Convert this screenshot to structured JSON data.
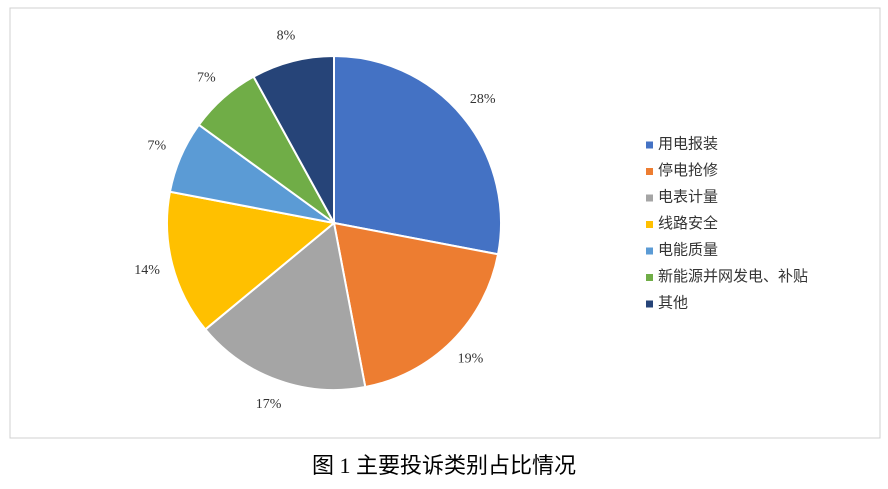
{
  "chart_data": {
    "type": "pie",
    "categories": [
      "用电报装",
      "停电抢修",
      "电表计量",
      "线路安全",
      "电能质量",
      "新能源并网发电、补贴",
      "其他"
    ],
    "values": [
      28,
      19,
      17,
      14,
      7,
      7,
      8
    ],
    "value_labels": [
      "28%",
      "19%",
      "17%",
      "14%",
      "7%",
      "7%",
      "8%"
    ],
    "colors": [
      "#4472c4",
      "#ed7d31",
      "#a5a5a5",
      "#ffc000",
      "#5b9bd5",
      "#70ad47",
      "#264478"
    ],
    "legend": "right"
  },
  "caption": "图 1 主要投诉类别占比情况"
}
